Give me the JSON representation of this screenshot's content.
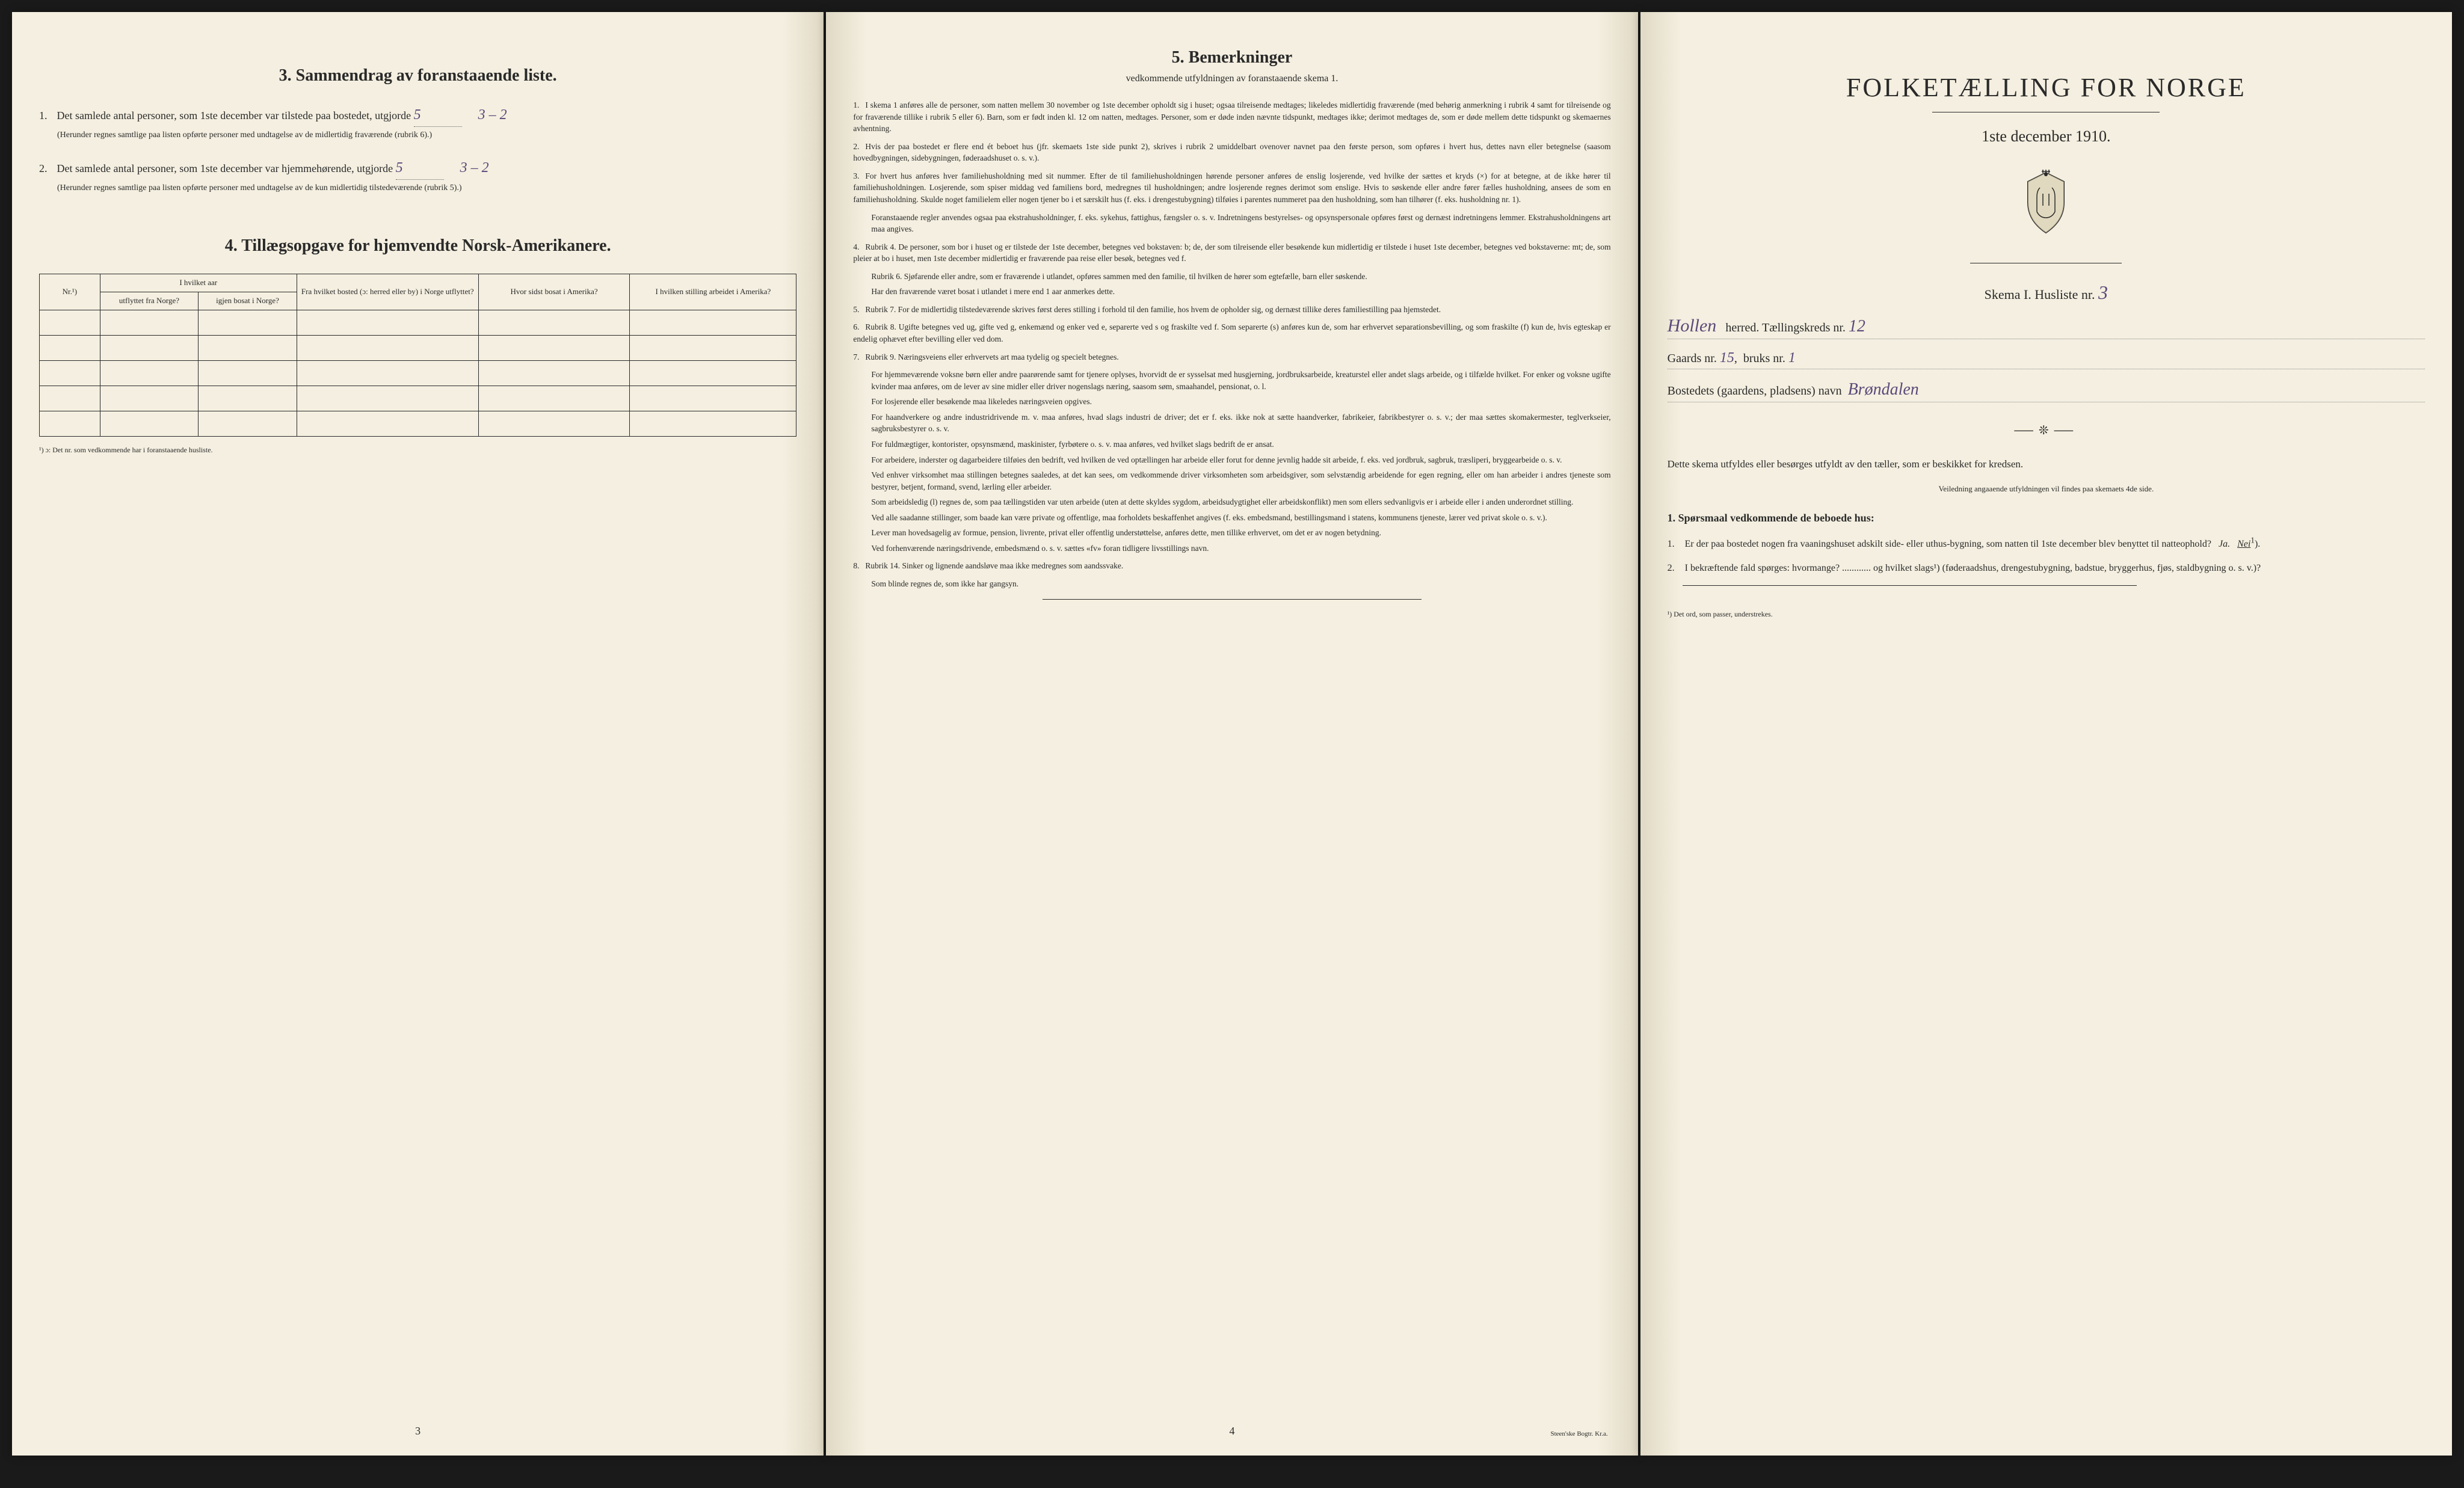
{
  "page_left": {
    "section3_title": "3.   Sammendrag av foranstaaende liste.",
    "item1_text": "Det samlede antal personer, som 1ste december var tilstede paa bostedet, utgjorde",
    "item1_value": "5",
    "item1_extra": "3 – 2",
    "item1_note": "(Herunder regnes samtlige paa listen opførte personer med undtagelse av de midlertidig fraværende (rubrik 6).)",
    "item2_text": "Det samlede antal personer, som 1ste december var hjemmehørende, utgjorde",
    "item2_value": "5",
    "item2_extra": "3 – 2",
    "item2_note": "(Herunder regnes samtlige paa listen opførte personer med undtagelse av de kun midlertidig tilstedeværende (rubrik 5).)",
    "section4_title": "4.   Tillægsopgave for hjemvendte Norsk-Amerikanere.",
    "table": {
      "col_nr": "Nr.¹)",
      "col_aar": "I hvilket aar",
      "col_utflyttet": "utflyttet fra Norge?",
      "col_igjen": "igjen bosat i Norge?",
      "col_fra": "Fra hvilket bosted (ɔ: herred eller by) i Norge utflyttet?",
      "col_hvor": "Hvor sidst bosat i Amerika?",
      "col_stilling": "I hvilken stilling arbeidet i Amerika?",
      "rows": 5
    },
    "footnote_left": "¹) ɔ: Det nr. som vedkommende har i foranstaaende husliste.",
    "page_num": "3"
  },
  "page_center": {
    "title": "5.   Bemerkninger",
    "subtitle": "vedkommende utfyldningen av foranstaaende skema 1.",
    "items": [
      {
        "num": "1.",
        "text": "I skema 1 anføres alle de personer, som natten mellem 30 november og 1ste december opholdt sig i huset; ogsaa tilreisende medtages; likeledes midlertidig fraværende (med behørig anmerkning i rubrik 4 samt for tilreisende og for fraværende tillike i rubrik 5 eller 6). Barn, som er født inden kl. 12 om natten, medtages. Personer, som er døde inden nævnte tidspunkt, medtages ikke; derimot medtages de, som er døde mellem dette tidspunkt og skemaernes avhentning."
      },
      {
        "num": "2.",
        "text": "Hvis der paa bostedet er flere end ét beboet hus (jfr. skemaets 1ste side punkt 2), skrives i rubrik 2 umiddelbart ovenover navnet paa den første person, som opføres i hvert hus, dettes navn eller betegnelse (saasom hovedbygningen, sidebygningen, føderaadshuset o. s. v.)."
      },
      {
        "num": "3.",
        "text": "For hvert hus anføres hver familiehusholdning med sit nummer. Efter de til familiehusholdningen hørende personer anføres de enslig losjerende, ved hvilke der sættes et kryds (×) for at betegne, at de ikke hører til familiehusholdningen. Losjerende, som spiser middag ved familiens bord, medregnes til husholdningen; andre losjerende regnes derimot som enslige. Hvis to søskende eller andre fører fælles husholdning, ansees de som en familiehusholdning. Skulde noget familielem eller nogen tjener bo i et særskilt hus (f. eks. i drengestubygning) tilføies i parentes nummeret paa den husholdning, som han tilhører (f. eks. husholdning nr. 1).",
        "indent": "Foranstaaende regler anvendes ogsaa paa ekstrahusholdninger, f. eks. sykehus, fattighus, fængsler o. s. v. Indretningens bestyrelses- og opsynspersonale opføres først og dernæst indretningens lemmer. Ekstrahusholdningens art maa angives."
      },
      {
        "num": "4.",
        "text": "Rubrik 4. De personer, som bor i huset og er tilstede der 1ste december, betegnes ved bokstaven: b; de, der som tilreisende eller besøkende kun midlertidig er tilstede i huset 1ste december, betegnes ved bokstaverne: mt; de, som pleier at bo i huset, men 1ste december midlertidig er fraværende paa reise eller besøk, betegnes ved f.",
        "indent": "Rubrik 6. Sjøfarende eller andre, som er fraværende i utlandet, opføres sammen med den familie, til hvilken de hører som egtefælle, barn eller søskende.",
        "indent2": "Har den fraværende været bosat i utlandet i mere end 1 aar anmerkes dette."
      },
      {
        "num": "5.",
        "text": "Rubrik 7. For de midlertidig tilstedeværende skrives først deres stilling i forhold til den familie, hos hvem de opholder sig, og dernæst tillike deres familiestilling paa hjemstedet."
      },
      {
        "num": "6.",
        "text": "Rubrik 8. Ugifte betegnes ved ug, gifte ved g, enkemænd og enker ved e, separerte ved s og fraskilte ved f. Som separerte (s) anføres kun de, som har erhvervet separationsbevilling, og som fraskilte (f) kun de, hvis egteskap er endelig ophævet efter bevilling eller ved dom."
      },
      {
        "num": "7.",
        "text": "Rubrik 9. Næringsveiens eller erhvervets art maa tydelig og specielt betegnes.",
        "indent": "For hjemmeværende voksne børn eller andre paarørende samt for tjenere oplyses, hvorvidt de er sysselsat med husgjerning, jordbruksarbeide, kreaturstel eller andet slags arbeide, og i tilfælde hvilket. For enker og voksne ugifte kvinder maa anføres, om de lever av sine midler eller driver nogenslags næring, saasom søm, smaahandel, pensionat, o. l.",
        "indent2": "For losjerende eller besøkende maa likeledes næringsveien opgives.",
        "indent3": "For haandverkere og andre industridrivende m. v. maa anføres, hvad slags industri de driver; det er f. eks. ikke nok at sætte haandverker, fabrikeier, fabrikbestyrer o. s. v.; der maa sættes skomakermester, teglverkseier, sagbruksbestyrer o. s. v.",
        "indent4": "For fuldmægtiger, kontorister, opsynsmænd, maskinister, fyrbøtere o. s. v. maa anføres, ved hvilket slags bedrift de er ansat.",
        "indent5": "For arbeidere, inderster og dagarbeidere tilføies den bedrift, ved hvilken de ved optællingen har arbeide eller forut for denne jevnlig hadde sit arbeide, f. eks. ved jordbruk, sagbruk, træsliperi, bryggearbeide o. s. v.",
        "indent6": "Ved enhver virksomhet maa stillingen betegnes saaledes, at det kan sees, om vedkommende driver virksomheten som arbeidsgiver, som selvstændig arbeidende for egen regning, eller om han arbeider i andres tjeneste som bestyrer, betjent, formand, svend, lærling eller arbeider.",
        "indent7": "Som arbeidsledig (l) regnes de, som paa tællingstiden var uten arbeide (uten at dette skyldes sygdom, arbeidsudygtighet eller arbeidskonflikt) men som ellers sedvanligvis er i arbeide eller i anden underordnet stilling.",
        "indent8": "Ved alle saadanne stillinger, som baade kan være private og offentlige, maa forholdets beskaffenhet angives (f. eks. embedsmand, bestillingsmand i statens, kommunens tjeneste, lærer ved privat skole o. s. v.).",
        "indent9": "Lever man hovedsagelig av formue, pension, livrente, privat eller offentlig understøttelse, anføres dette, men tillike erhvervet, om det er av nogen betydning.",
        "indent10": "Ved forhenværende næringsdrivende, embedsmænd o. s. v. sættes «fv» foran tidligere livsstillings navn."
      },
      {
        "num": "8.",
        "text": "Rubrik 14. Sinker og lignende aandsløve maa ikke medregnes som aandssvake.",
        "indent": "Som blinde regnes de, som ikke har gangsyn."
      }
    ],
    "page_num": "4",
    "printer": "Steen'ske Bogtr. Kr.a."
  },
  "page_right": {
    "main_title": "FOLKETÆLLING FOR NORGE",
    "date": "1ste december 1910.",
    "skema_label": "Skema I.   Husliste nr.",
    "skema_value": "3",
    "herred_value": "Hollen",
    "herred_label": "herred.   Tællingskreds nr.",
    "kreds_value": "12",
    "gaards_label": "Gaards nr.",
    "gaards_value": "15",
    "bruks_label": "bruks nr.",
    "bruks_value": "1",
    "bosted_label": "Bostedets (gaardens, pladsens) navn",
    "bosted_value": "Brøndalen",
    "instruction": "Dette skema utfyldes eller besørges utfyldt av den tæller, som er beskikket for kredsen.",
    "small_instruction": "Veiledning angaaende utfyldningen vil findes paa skemaets 4de side.",
    "questions_title": "1. Spørsmaal vedkommende de beboede hus:",
    "q1": "Er der paa bostedet nogen fra vaaningshuset adskilt side- eller uthus-bygning, som natten til 1ste december blev benyttet til natteophold?   Ja.   Nei",
    "q2": "I bekræftende fald spørges: hvormange? ............ og hvilket slags¹) (føderaadshus, drengestubygning, badstue, bryggerhus, fjøs, staldbygning o. s. v.)?",
    "bottom_footnote": "¹) Det ord, som passer, understrekes."
  },
  "colors": {
    "paper": "#f4efe0",
    "text": "#2a2a2a",
    "handwriting": "#5a4a7a",
    "shadow": "#e0d9c5"
  }
}
